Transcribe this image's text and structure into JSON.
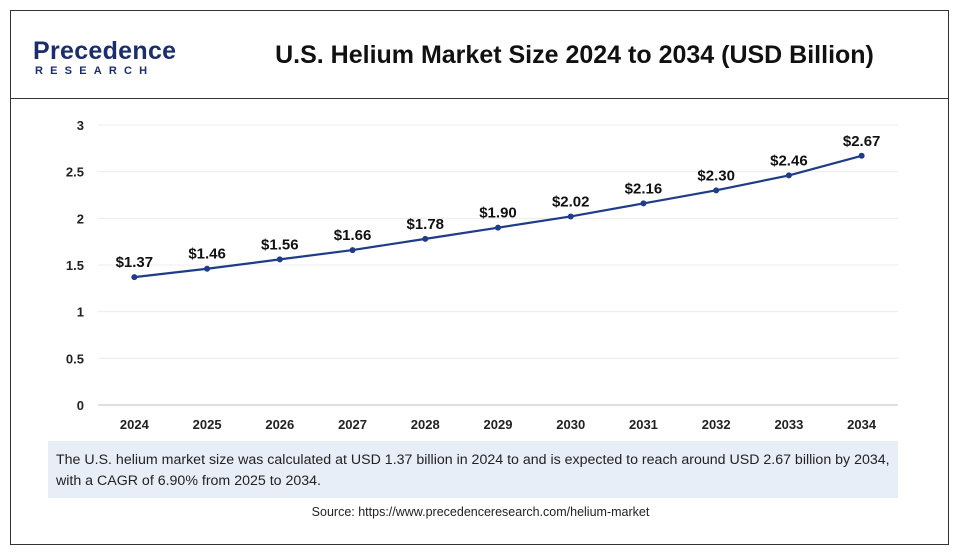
{
  "header": {
    "logo_main": "Precedence",
    "logo_sub": "RESEARCH",
    "title": "U.S. Helium Market Size 2024 to 2034 (USD Billion)"
  },
  "chart_data": {
    "type": "line",
    "title": "U.S. Helium Market Size 2024 to 2034 (USD Billion)",
    "xlabel": "",
    "ylabel": "",
    "categories": [
      "2024",
      "2025",
      "2026",
      "2027",
      "2028",
      "2029",
      "2030",
      "2031",
      "2032",
      "2033",
      "2034"
    ],
    "series": [
      {
        "values": [
          1.37,
          1.46,
          1.56,
          1.66,
          1.78,
          1.9,
          2.02,
          2.16,
          2.3,
          2.46,
          2.67
        ],
        "data_labels": [
          "$1.37",
          "$1.46",
          "$1.56",
          "$1.66",
          "$1.78",
          "$1.90",
          "$2.02",
          "$2.16",
          "$2.30",
          "$2.46",
          "$2.67"
        ],
        "color": "#1f3c88"
      }
    ],
    "ylim": [
      0,
      3
    ],
    "yticks": [
      0,
      0.5,
      1,
      1.5,
      2,
      2.5,
      3
    ],
    "ytick_labels": [
      "0",
      "0.5",
      "1",
      "1.5",
      "2",
      "2.5",
      "3"
    ],
    "grid": true,
    "legend": false
  },
  "note": {
    "text": "The U.S. helium market size was calculated at USD 1.37 billion in 2024 to and is expected to reach around USD 2.67 billion by 2034, with a CAGR of 6.90% from 2025 to 2034."
  },
  "source": {
    "text": "Source: https://www.precedenceresearch.com/helium-market"
  },
  "colors": {
    "brand": "#1c2d6b",
    "line": "#1f3c88",
    "note_bg": "#e8eef8"
  }
}
